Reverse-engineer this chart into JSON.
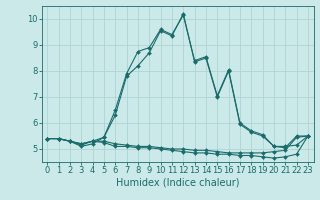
{
  "xlabel": "Humidex (Indice chaleur)",
  "ylabel": "",
  "xlim": [
    -0.5,
    23.5
  ],
  "ylim": [
    4.5,
    10.5
  ],
  "xticks": [
    0,
    1,
    2,
    3,
    4,
    5,
    6,
    7,
    8,
    9,
    10,
    11,
    12,
    13,
    14,
    15,
    16,
    17,
    18,
    19,
    20,
    21,
    22,
    23
  ],
  "yticks": [
    5,
    6,
    7,
    8,
    9,
    10
  ],
  "bg_color": "#cce9e9",
  "grid_color": "#aed4d4",
  "line_color": "#1a6b6b",
  "lines": [
    [
      5.4,
      5.4,
      5.3,
      5.2,
      5.3,
      5.25,
      5.1,
      5.1,
      5.05,
      5.05,
      5.0,
      4.95,
      4.9,
      4.85,
      4.85,
      4.8,
      4.8,
      4.75,
      4.75,
      4.7,
      4.65,
      4.7,
      4.8,
      5.5
    ],
    [
      5.4,
      5.4,
      5.3,
      5.2,
      5.3,
      5.3,
      5.2,
      5.15,
      5.1,
      5.1,
      5.05,
      5.0,
      5.0,
      4.95,
      4.95,
      4.9,
      4.85,
      4.85,
      4.85,
      4.85,
      4.9,
      4.95,
      5.45,
      5.5
    ],
    [
      5.4,
      5.4,
      5.3,
      5.15,
      5.3,
      5.45,
      6.3,
      7.8,
      8.2,
      8.7,
      9.55,
      9.35,
      10.2,
      8.35,
      8.5,
      7.0,
      8.0,
      5.95,
      5.65,
      5.5,
      5.1,
      5.05,
      5.5,
      5.5
    ],
    [
      5.4,
      5.4,
      5.3,
      5.1,
      5.2,
      5.45,
      6.5,
      7.9,
      8.75,
      8.9,
      9.6,
      9.4,
      10.15,
      8.4,
      8.55,
      7.05,
      8.05,
      6.0,
      5.7,
      5.55,
      5.1,
      5.1,
      5.15,
      5.5
    ]
  ],
  "tick_fontsize": 6.0,
  "xlabel_fontsize": 7.0
}
